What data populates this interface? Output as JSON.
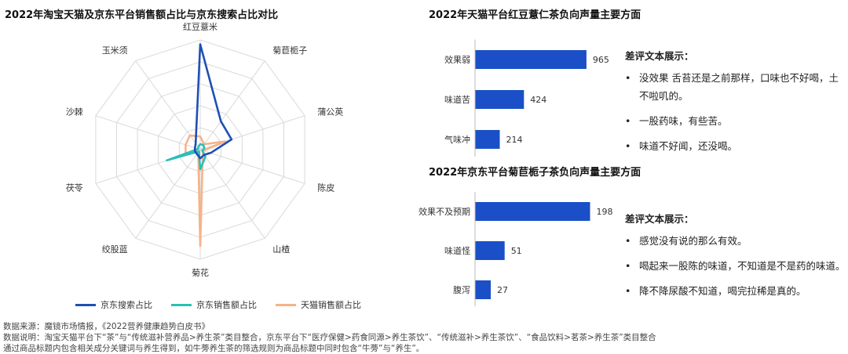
{
  "radar_title": "2022年淘宝天猫及京东平台销售额占比与京东搜索占比对比",
  "bar1_title": "2022年天猫平台红豆薏仁茶负向声量主要方面",
  "bar2_title": "2022年京东平台菊苣栀子茶负向声量主要方面",
  "chart_data": [
    {
      "type": "radar",
      "title": "2022年淘宝天猫及京东平台销售额占比与京东搜索占比对比",
      "categories": [
        "红豆薏米",
        "菊苣栀子",
        "蒲公英",
        "陈皮",
        "山楂",
        "菊花",
        "绞股蓝",
        "茯苓",
        "沙棘",
        "玉米须"
      ],
      "max": 1.0,
      "grid_levels": 5,
      "legend_position": "bottom",
      "series": [
        {
          "name": "京东搜索占比",
          "color": "#1f4fb4",
          "values": [
            0.96,
            0.32,
            0.3,
            0.1,
            0.06,
            0.08,
            0.05,
            0.05,
            0.05,
            0.07
          ]
        },
        {
          "name": "京东销售额占比",
          "color": "#2bbfb8",
          "values": [
            0.05,
            0.05,
            0.04,
            0.02,
            0.08,
            0.18,
            0.02,
            0.32,
            0.02,
            0.03
          ]
        },
        {
          "name": "天猫销售额占比",
          "color": "#f5b38a",
          "values": [
            0.12,
            0.06,
            0.24,
            0.03,
            0.04,
            0.88,
            0.03,
            0.14,
            0.14,
            0.16
          ]
        }
      ]
    },
    {
      "type": "bar",
      "orientation": "horizontal",
      "title": "2022年天猫平台红豆薏仁茶负向声量主要方面",
      "categories": [
        "效果弱",
        "味道苦",
        "气味冲"
      ],
      "values": [
        965,
        424,
        214
      ],
      "xlim": [
        0,
        1000
      ],
      "color": "#1a4fc8"
    },
    {
      "type": "bar",
      "orientation": "horizontal",
      "title": "2022年京东平台菊苣栀子茶负向声量主要方面",
      "categories": [
        "效果不及预期",
        "味道怪",
        "腹泻"
      ],
      "values": [
        198,
        51,
        27
      ],
      "xlim": [
        0,
        200
      ],
      "color": "#1a4fc8"
    }
  ],
  "reviews1": {
    "heading": "差评文本展示：",
    "items": [
      "没效果 舌苔还是之前那样，口味也不好喝，土不啦叽的。",
      "一股药味，有些苦。",
      "味道不好闻，还没喝。"
    ]
  },
  "reviews2": {
    "heading": "差评文本展示：",
    "items": [
      "感觉没有说的那么有效。",
      "喝起来一股陈的味道，不知道是不是药的味道。",
      "降不降尿酸不知道，喝完拉稀是真的。"
    ]
  },
  "footer": {
    "line1": "数据来源：魔镜市场情报，《2022营养健康趋势白皮书》",
    "line2": "数据说明：淘宝天猫平台下“茶”与“传统滋补营养品>养生茶”类目整合，京东平台下“医疗保健>药食同源>养生茶饮”、“传统滋补>养生茶饮”、“食品饮料>茗茶>养生茶”类目整合",
    "line3": "通过商品标题内包含相关成分关键词与养生得到，如牛蒡养生茶的筛选规则为商品标题中同时包含“牛蒡”与“养生”。"
  }
}
